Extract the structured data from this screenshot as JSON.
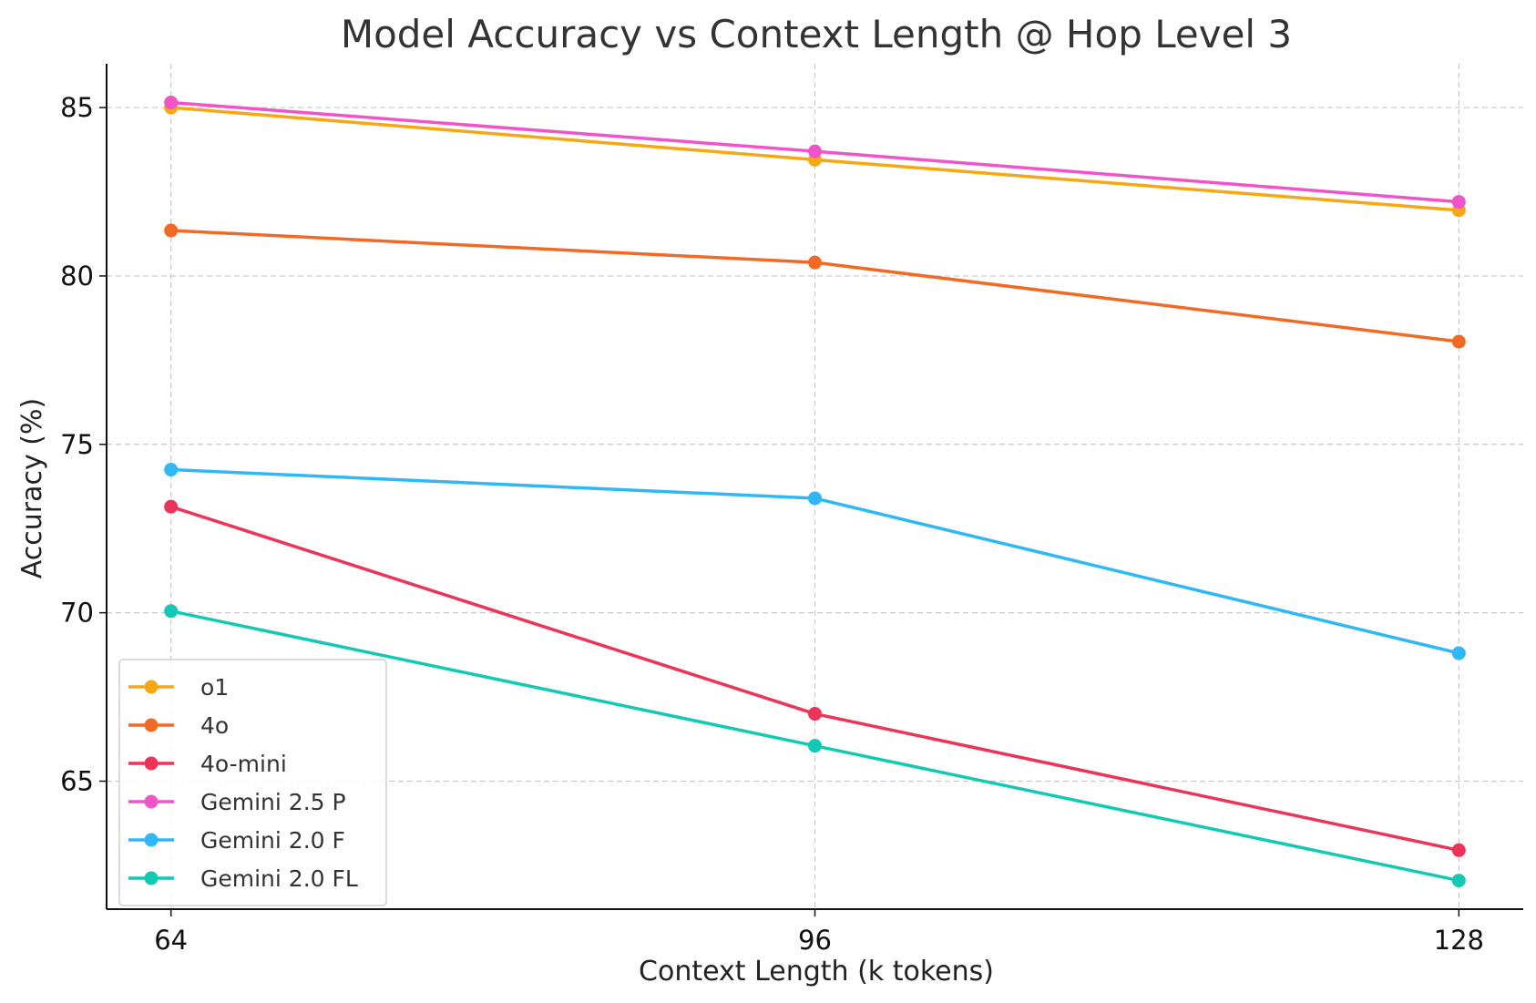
{
  "chart_data": {
    "type": "line",
    "title": "Model Accuracy vs Context Length @ Hop Level 3",
    "xlabel": "Context Length (k tokens)",
    "ylabel": "Accuracy (%)",
    "x": [
      64,
      96,
      128
    ],
    "xlim": [
      60.8,
      131.2
    ],
    "ylim": [
      61.2,
      86.3
    ],
    "yticks": [
      65,
      70,
      75,
      80,
      85
    ],
    "grid": true,
    "legend_position": "lower-left",
    "series": [
      {
        "name": "o1",
        "color": "#f5a714",
        "values": [
          85.0,
          83.45,
          81.95
        ]
      },
      {
        "name": "4o",
        "color": "#f06a26",
        "values": [
          81.35,
          80.4,
          78.05
        ]
      },
      {
        "name": "4o-mini",
        "color": "#ec3358",
        "values": [
          73.15,
          67.0,
          62.95
        ]
      },
      {
        "name": "Gemini 2.5 P",
        "color": "#ef55c8",
        "values": [
          85.15,
          83.7,
          82.2
        ]
      },
      {
        "name": "Gemini 2.0 F",
        "color": "#2fb8f5",
        "values": [
          74.25,
          73.4,
          68.8
        ]
      },
      {
        "name": "Gemini 2.0 FL",
        "color": "#12c9b4",
        "values": [
          70.05,
          66.05,
          62.05
        ]
      }
    ]
  }
}
